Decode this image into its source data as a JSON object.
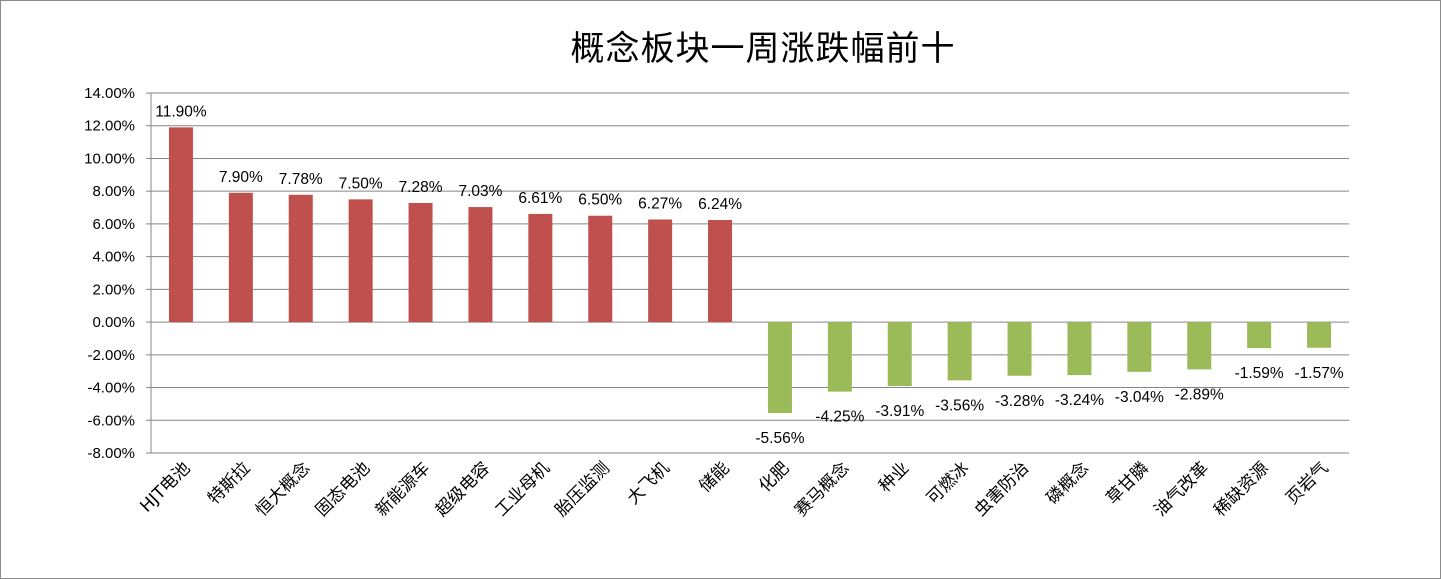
{
  "chart_data": {
    "type": "bar",
    "title": "概念板块一周涨跌幅前十",
    "xlabel": "",
    "ylabel": "",
    "ylim": [
      -0.08,
      0.14
    ],
    "ytick_step": 0.02,
    "grid": true,
    "legend": "none",
    "value_format": "percent_2dp",
    "colors": {
      "positive": "#c0504d",
      "negative": "#9bbb59",
      "grid": "#868686",
      "axis": "#868686"
    },
    "categories": [
      "HJT电池",
      "特斯拉",
      "恒大概念",
      "固态电池",
      "新能源车",
      "超级电容",
      "工业母机",
      "胎压监测",
      "大飞机",
      "储能",
      "化肥",
      "赛马概念",
      "种业",
      "可燃冰",
      "虫害防治",
      "磷概念",
      "草甘膦",
      "油气改革",
      "稀缺资源",
      "页岩气"
    ],
    "values": [
      0.119,
      0.079,
      0.0778,
      0.075,
      0.0728,
      0.0703,
      0.0661,
      0.065,
      0.0627,
      0.0624,
      -0.0556,
      -0.0425,
      -0.0391,
      -0.0356,
      -0.0328,
      -0.0324,
      -0.0304,
      -0.0289,
      -0.0159,
      -0.0157
    ],
    "data_labels": [
      "11.90%",
      "7.90%",
      "7.78%",
      "7.50%",
      "7.28%",
      "7.03%",
      "6.61%",
      "6.50%",
      "6.27%",
      "6.24%",
      "-5.56%",
      "-4.25%",
      "-3.91%",
      "-3.56%",
      "-3.28%",
      "-3.24%",
      "-3.04%",
      "-2.89%",
      "-1.59%",
      "-1.57%"
    ],
    "ytick_labels": [
      "14.00%",
      "12.00%",
      "10.00%",
      "8.00%",
      "6.00%",
      "4.00%",
      "2.00%",
      "0.00%",
      "-2.00%",
      "-4.00%",
      "-6.00%",
      "-8.00%"
    ]
  }
}
